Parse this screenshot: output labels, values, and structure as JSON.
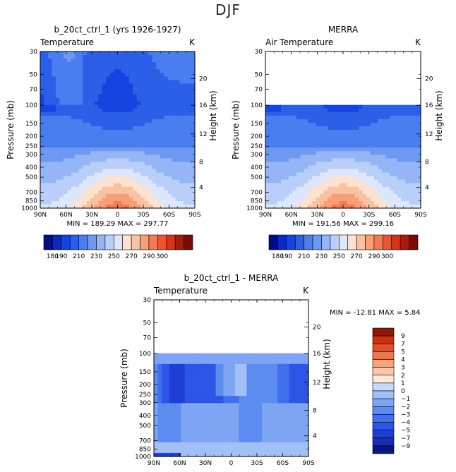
{
  "page": {
    "suptitle": "DJF"
  },
  "chart_data": [
    {
      "type": "heatmap",
      "title": "b_20ct_ctrl_1 (yrs 1926-1927)",
      "subtitle_left": "Temperature",
      "units": "K",
      "ylabel": "Pressure (mb)",
      "y2label": "Height (km)",
      "x_ticks": [
        "90N",
        "60N",
        "30N",
        "0",
        "30S",
        "60S",
        "90S"
      ],
      "y_ticks": [
        30,
        50,
        70,
        100,
        150,
        200,
        250,
        300,
        400,
        500,
        700,
        850,
        1000
      ],
      "y2_ticks": [
        20,
        16,
        12,
        8,
        4
      ],
      "y_scale": "log",
      "ylim": [
        1000,
        30
      ],
      "data_top_mb": 30,
      "stats": "MIN = 189.29   MAX = 297.77",
      "min": 189.29,
      "max": 297.77,
      "levels": [
        180,
        190,
        200,
        210,
        220,
        230,
        240,
        250,
        260,
        270,
        280,
        290,
        300
      ],
      "label_levels": [
        "180",
        "190",
        "210",
        "230",
        "250",
        "270",
        "290",
        "300"
      ],
      "field": "t"
    },
    {
      "type": "heatmap",
      "title": "MERRA",
      "subtitle_left": "Air Temperature",
      "units": "K",
      "ylabel": "Pressure (mb)",
      "y2label": "Height (km)",
      "x_ticks": [
        "90N",
        "60N",
        "30N",
        "0",
        "30S",
        "60S",
        "90S"
      ],
      "y_ticks": [
        30,
        50,
        70,
        100,
        150,
        200,
        250,
        300,
        400,
        500,
        700,
        850,
        1000
      ],
      "y2_ticks": [
        20,
        16,
        12,
        8,
        4
      ],
      "y_scale": "log",
      "ylim": [
        1000,
        30
      ],
      "data_top_mb": 100,
      "stats": "MIN = 191.56   MAX = 299.16",
      "min": 191.56,
      "max": 299.16,
      "levels": [
        180,
        190,
        200,
        210,
        220,
        230,
        240,
        250,
        260,
        270,
        280,
        290,
        300
      ],
      "label_levels": [
        "180",
        "190",
        "210",
        "230",
        "250",
        "270",
        "290",
        "300"
      ],
      "field": "t"
    },
    {
      "type": "heatmap",
      "title": "b_20ct_ctrl_1 - MERRA",
      "subtitle_left": "Temperature",
      "units": "K",
      "ylabel": "Pressure (mb)",
      "y2label": "Height (km)",
      "x_ticks": [
        "90N",
        "60N",
        "30N",
        "0",
        "30S",
        "60S",
        "90S"
      ],
      "y_ticks": [
        30,
        50,
        70,
        100,
        150,
        200,
        250,
        300,
        400,
        500,
        700,
        850,
        1000
      ],
      "y2_ticks": [
        20,
        16,
        12,
        8,
        4
      ],
      "y_scale": "log",
      "ylim": [
        1000,
        30
      ],
      "data_top_mb": 100,
      "stats": "MIN = -12.81   MAX =   5.84",
      "min": -12.81,
      "max": 5.84,
      "levels": [
        -9,
        -7,
        -5,
        -4,
        -3,
        -2,
        -1,
        0,
        1,
        2,
        3,
        5,
        7,
        9
      ],
      "label_levels": [
        "9",
        "7",
        "5",
        "4",
        "3",
        "2",
        "1",
        "0",
        "−1",
        "−2",
        "−3",
        "−4",
        "−5",
        "−7",
        "−9"
      ],
      "field": "d"
    }
  ],
  "colors": {
    "temp": [
      "#000d85",
      "#0a28c4",
      "#1644e0",
      "#2b5fe8",
      "#4a7ef0",
      "#6e99f3",
      "#94b6f7",
      "#b9cffa",
      "#dce7fc",
      "#fde2d2",
      "#fbc2a2",
      "#f89f77",
      "#f47a52",
      "#ec5432",
      "#d8331a",
      "#a91a0b",
      "#7a0a03"
    ],
    "diff": [
      "#0a1580",
      "#1a2bb8",
      "#1e3fd6",
      "#2d55e6",
      "#4170ec",
      "#5d8cf0",
      "#7ea5f3",
      "#a3c0f6",
      "#c8daf9",
      "#fde8dc",
      "#fbc7a8",
      "#f8a27a",
      "#f2754a",
      "#e54d27",
      "#c8300f",
      "#8f1703"
    ]
  }
}
